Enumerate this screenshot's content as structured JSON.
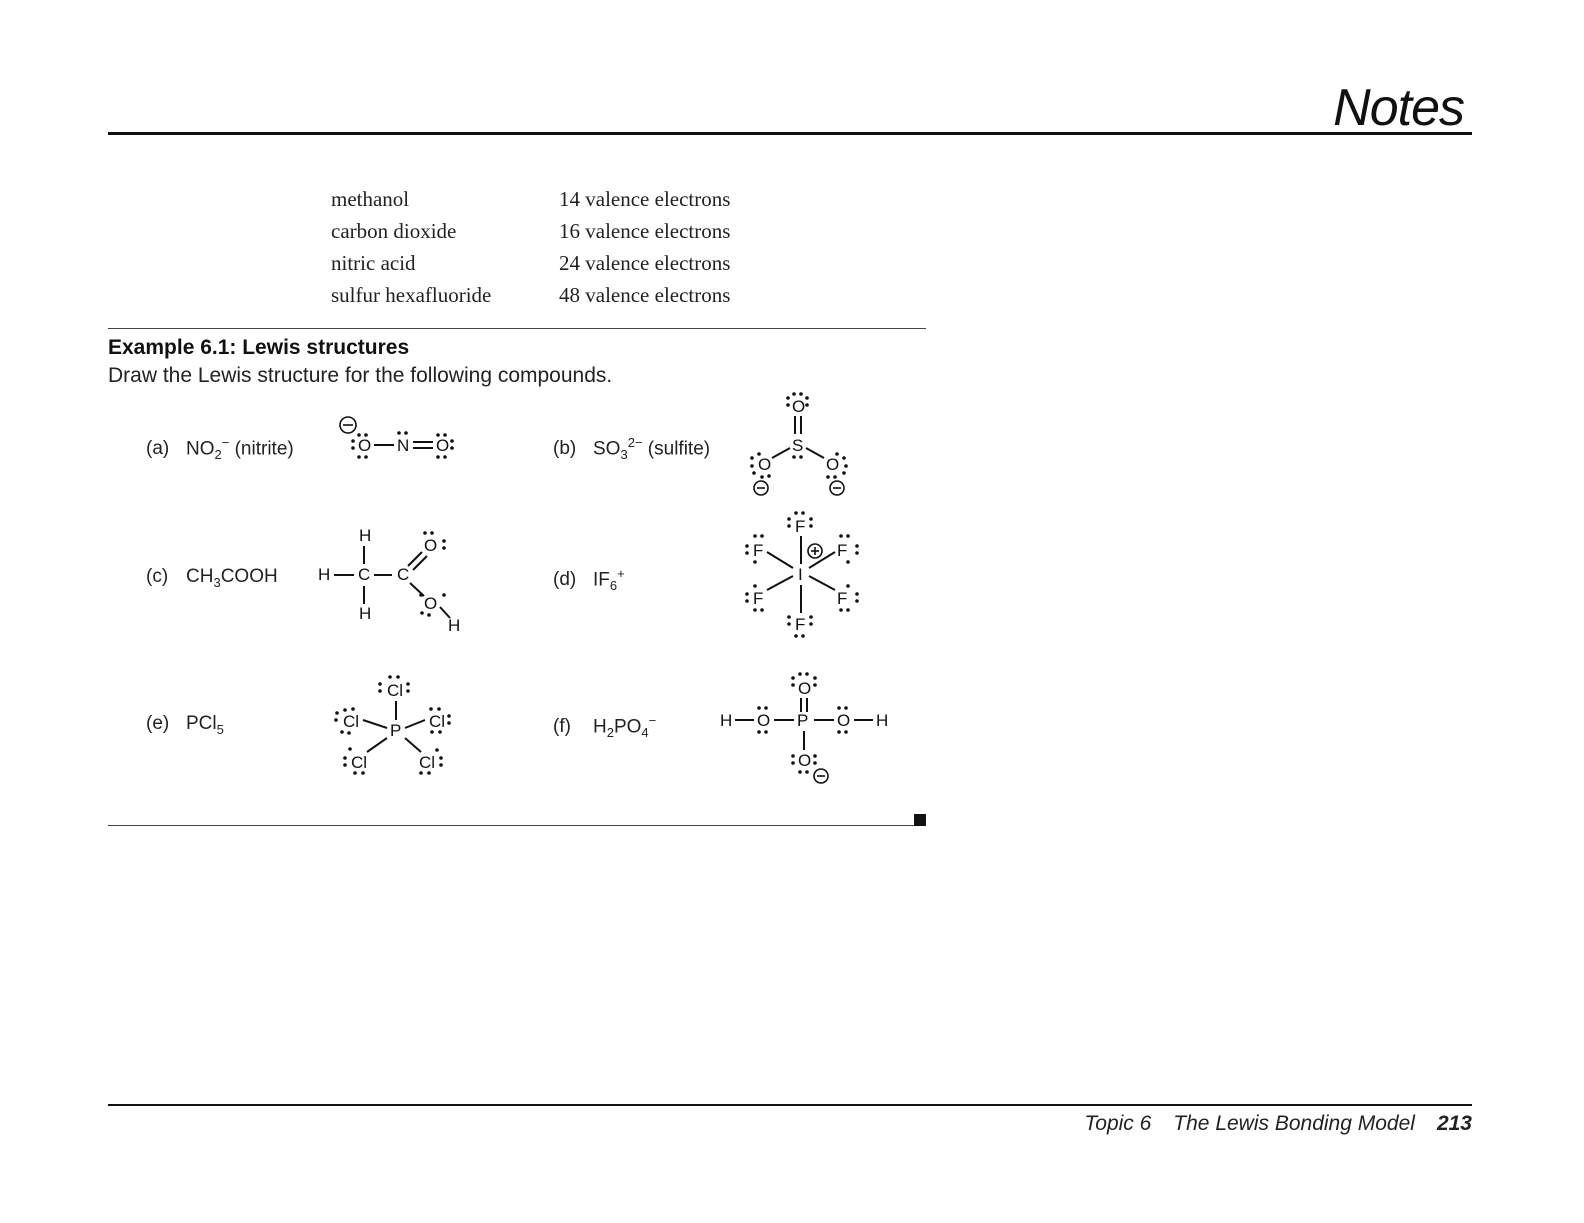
{
  "header": {
    "title": "Notes"
  },
  "valence_table": [
    {
      "compound": "methanol",
      "electrons": "14 valence electrons"
    },
    {
      "compound": "carbon dioxide",
      "electrons": "16 valence electrons"
    },
    {
      "compound": "nitric acid",
      "electrons": "24 valence electrons"
    },
    {
      "compound": "sulfur hexafluoride",
      "electrons": "48 valence electrons"
    }
  ],
  "example": {
    "title": "Example 6.1: Lewis structures",
    "prompt": "Draw the Lewis structure for the following compounds.",
    "items": [
      {
        "tag": "(a)",
        "formula": "NO",
        "sub": "2",
        "sup": "−",
        "note": "(nitrite)"
      },
      {
        "tag": "(b)",
        "formula": "SO",
        "sub": "3",
        "sup": "2−",
        "note": "(sulfite)"
      },
      {
        "tag": "(c)",
        "formula": "CH",
        "sub": "3",
        "rest": "COOH"
      },
      {
        "tag": "(d)",
        "formula": "IF",
        "sub": "6",
        "sup": "+"
      },
      {
        "tag": "(e)",
        "formula": "PCl",
        "sub": "5"
      },
      {
        "tag": "(f)",
        "formula": "H",
        "sub": "2",
        "rest": "PO",
        "sub2": "4",
        "sup": "−"
      }
    ]
  },
  "footer": {
    "topic": "Topic 6",
    "chapter": "The Lewis Bonding Model",
    "page": "213"
  }
}
